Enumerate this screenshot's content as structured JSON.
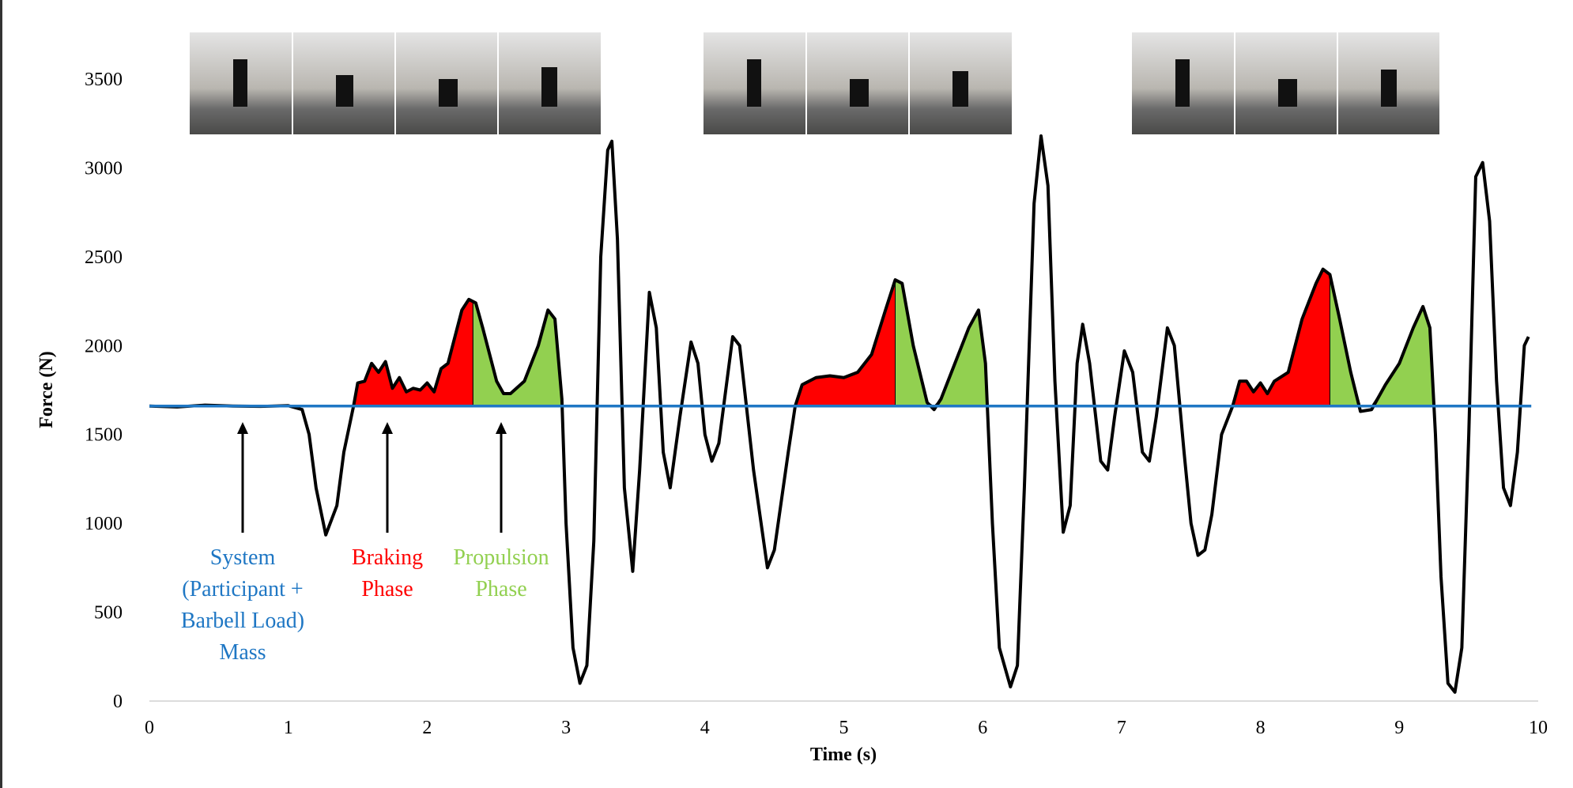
{
  "chart_data": {
    "type": "line",
    "x_label": "Time (s)",
    "y_label": "Force (N)",
    "xlim": [
      0,
      10
    ],
    "ylim": [
      0,
      3500
    ],
    "xticks": [
      0,
      1,
      2,
      3,
      4,
      5,
      6,
      7,
      8,
      9,
      10
    ],
    "yticks": [
      0,
      500,
      1000,
      1500,
      2000,
      2500,
      3000,
      3500
    ],
    "series": [
      {
        "color": "#000000",
        "x": [
          0,
          0.2,
          0.4,
          0.6,
          0.8,
          1.0,
          1.1,
          1.15,
          1.2,
          1.27,
          1.35,
          1.4,
          1.47,
          1.5,
          1.55,
          1.6,
          1.65,
          1.7,
          1.75,
          1.8,
          1.85,
          1.9,
          1.95,
          2.0,
          2.05,
          2.1,
          2.15,
          2.2,
          2.25,
          2.3,
          2.35,
          2.4,
          2.45,
          2.5,
          2.55,
          2.6,
          2.7,
          2.8,
          2.87,
          2.92,
          2.97,
          3.0,
          3.05,
          3.1,
          3.15,
          3.2,
          3.25,
          3.3,
          3.33,
          3.37,
          3.42,
          3.48,
          3.53,
          3.6,
          3.65,
          3.7,
          3.75,
          3.82,
          3.9,
          3.95,
          4.0,
          4.05,
          4.1,
          4.2,
          4.25,
          4.35,
          4.45,
          4.5,
          4.6,
          4.65,
          4.7,
          4.8,
          4.9,
          5.0,
          5.1,
          5.2,
          5.3,
          5.37,
          5.42,
          5.5,
          5.6,
          5.65,
          5.7,
          5.8,
          5.9,
          5.97,
          6.02,
          6.07,
          6.12,
          6.2,
          6.25,
          6.3,
          6.37,
          6.42,
          6.47,
          6.52,
          6.58,
          6.63,
          6.68,
          6.72,
          6.77,
          6.85,
          6.9,
          6.95,
          7.02,
          7.08,
          7.15,
          7.2,
          7.25,
          7.33,
          7.38,
          7.45,
          7.5,
          7.55,
          7.6,
          7.65,
          7.72,
          7.77,
          7.8,
          7.85,
          7.9,
          7.95,
          8.0,
          8.05,
          8.1,
          8.2,
          8.3,
          8.4,
          8.45,
          8.5,
          8.57,
          8.65,
          8.72,
          8.8,
          8.9,
          9.0,
          9.1,
          9.17,
          9.22,
          9.26,
          9.3,
          9.35,
          9.4,
          9.45,
          9.5,
          9.55,
          9.6,
          9.65,
          9.7,
          9.75,
          9.8,
          9.85,
          9.9,
          9.93
        ],
        "values": [
          1660,
          1655,
          1665,
          1660,
          1658,
          1662,
          1640,
          1500,
          1200,
          935,
          1100,
          1400,
          1660,
          1790,
          1800,
          1900,
          1850,
          1910,
          1760,
          1820,
          1740,
          1760,
          1750,
          1790,
          1740,
          1870,
          1900,
          2050,
          2200,
          2260,
          2240,
          2100,
          1950,
          1800,
          1730,
          1730,
          1800,
          2000,
          2200,
          2150,
          1700,
          1000,
          300,
          100,
          200,
          900,
          2500,
          3100,
          3150,
          2600,
          1200,
          730,
          1300,
          2300,
          2100,
          1400,
          1200,
          1600,
          2020,
          1900,
          1500,
          1350,
          1450,
          2050,
          2000,
          1300,
          750,
          850,
          1400,
          1660,
          1780,
          1820,
          1830,
          1820,
          1850,
          1950,
          2200,
          2370,
          2350,
          2000,
          1680,
          1640,
          1700,
          1900,
          2100,
          2200,
          1900,
          1000,
          300,
          80,
          200,
          1200,
          2800,
          3180,
          2900,
          1800,
          950,
          1100,
          1900,
          2120,
          1900,
          1350,
          1300,
          1600,
          1970,
          1850,
          1400,
          1350,
          1600,
          2100,
          2000,
          1400,
          1000,
          820,
          850,
          1050,
          1500,
          1600,
          1660,
          1800,
          1800,
          1740,
          1790,
          1730,
          1800,
          1850,
          2150,
          2350,
          2430,
          2400,
          2150,
          1850,
          1630,
          1640,
          1780,
          1900,
          2100,
          2220,
          2100,
          1500,
          700,
          100,
          50,
          300,
          1500,
          2950,
          3030,
          2700,
          1800,
          1200,
          1100,
          1400,
          2000,
          2050
        ]
      }
    ],
    "reference_line": {
      "y": 1660,
      "x": [
        0,
        9.95
      ],
      "color": "#1f77c4"
    },
    "regions": [
      {
        "color": "#ff0000",
        "x": [
          1.47,
          2.33
        ]
      },
      {
        "color": "#92d050",
        "x": [
          2.33,
          2.97
        ]
      },
      {
        "color": "#ff0000",
        "x": [
          4.65,
          5.37
        ]
      },
      {
        "color": "#92d050",
        "x": [
          5.37,
          6.03
        ]
      },
      {
        "color": "#ff0000",
        "x": [
          7.8,
          8.5
        ]
      },
      {
        "color": "#92d050",
        "x": [
          8.5,
          9.25
        ]
      }
    ],
    "annotations": [
      {
        "color": "#1f77c4",
        "lines": [
          "System",
          "(Participant +",
          "Barbell Load)",
          "Mass"
        ]
      },
      {
        "color": "#ff0000",
        "lines": [
          "Braking",
          "Phase"
        ]
      },
      {
        "color": "#92d050",
        "lines": [
          "Propulsion",
          "Phase"
        ]
      }
    ]
  }
}
